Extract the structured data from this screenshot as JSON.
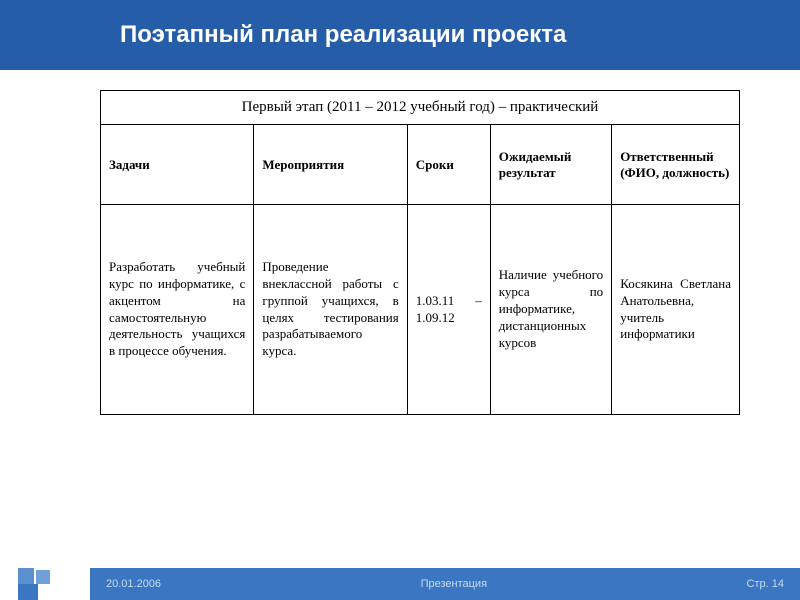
{
  "header": {
    "title": "Поэтапный план реализации проекта"
  },
  "table": {
    "stage_title": "Первый этап (2011 – 2012 учебный год) – практический",
    "columns": {
      "c1": "Задачи",
      "c2": "Мероприятия",
      "c3": "Сроки",
      "c4": "Ожидаемый результат",
      "c5": "Ответственный (ФИО, должность)"
    },
    "row": {
      "c1": "Разработать учебный курс по информатике, с акцентом на самостоятельную деятельность учащихся в процессе обучения.",
      "c2": "Проведение внеклассной работы с группой учащихся, в целях тестирования разрабатываемого курса.",
      "c3": "1.03.11 – 1.09.12",
      "c4": "Наличие учебного курса по информатике, дистанционных курсов",
      "c5": "Косякина Светлана Анатольевна, учитель информатики"
    },
    "col_widths": [
      "24%",
      "24%",
      "13%",
      "19%",
      "20%"
    ],
    "border_color": "#000000",
    "font_size_header": 13,
    "font_size_stage": 15,
    "font_size_body": 13
  },
  "footer": {
    "date": "20.01.2006",
    "center": "Презентация",
    "page": "Стр. 14",
    "bar_color": "#3a76c2",
    "text_color": "#c7dbf0",
    "deco_colors": [
      "#5a8fd0",
      "#6fa0d8",
      "#3a76c2"
    ]
  },
  "colors": {
    "header_bg": "#265da8",
    "header_text": "#ffffff",
    "page_bg": "#ffffff"
  }
}
